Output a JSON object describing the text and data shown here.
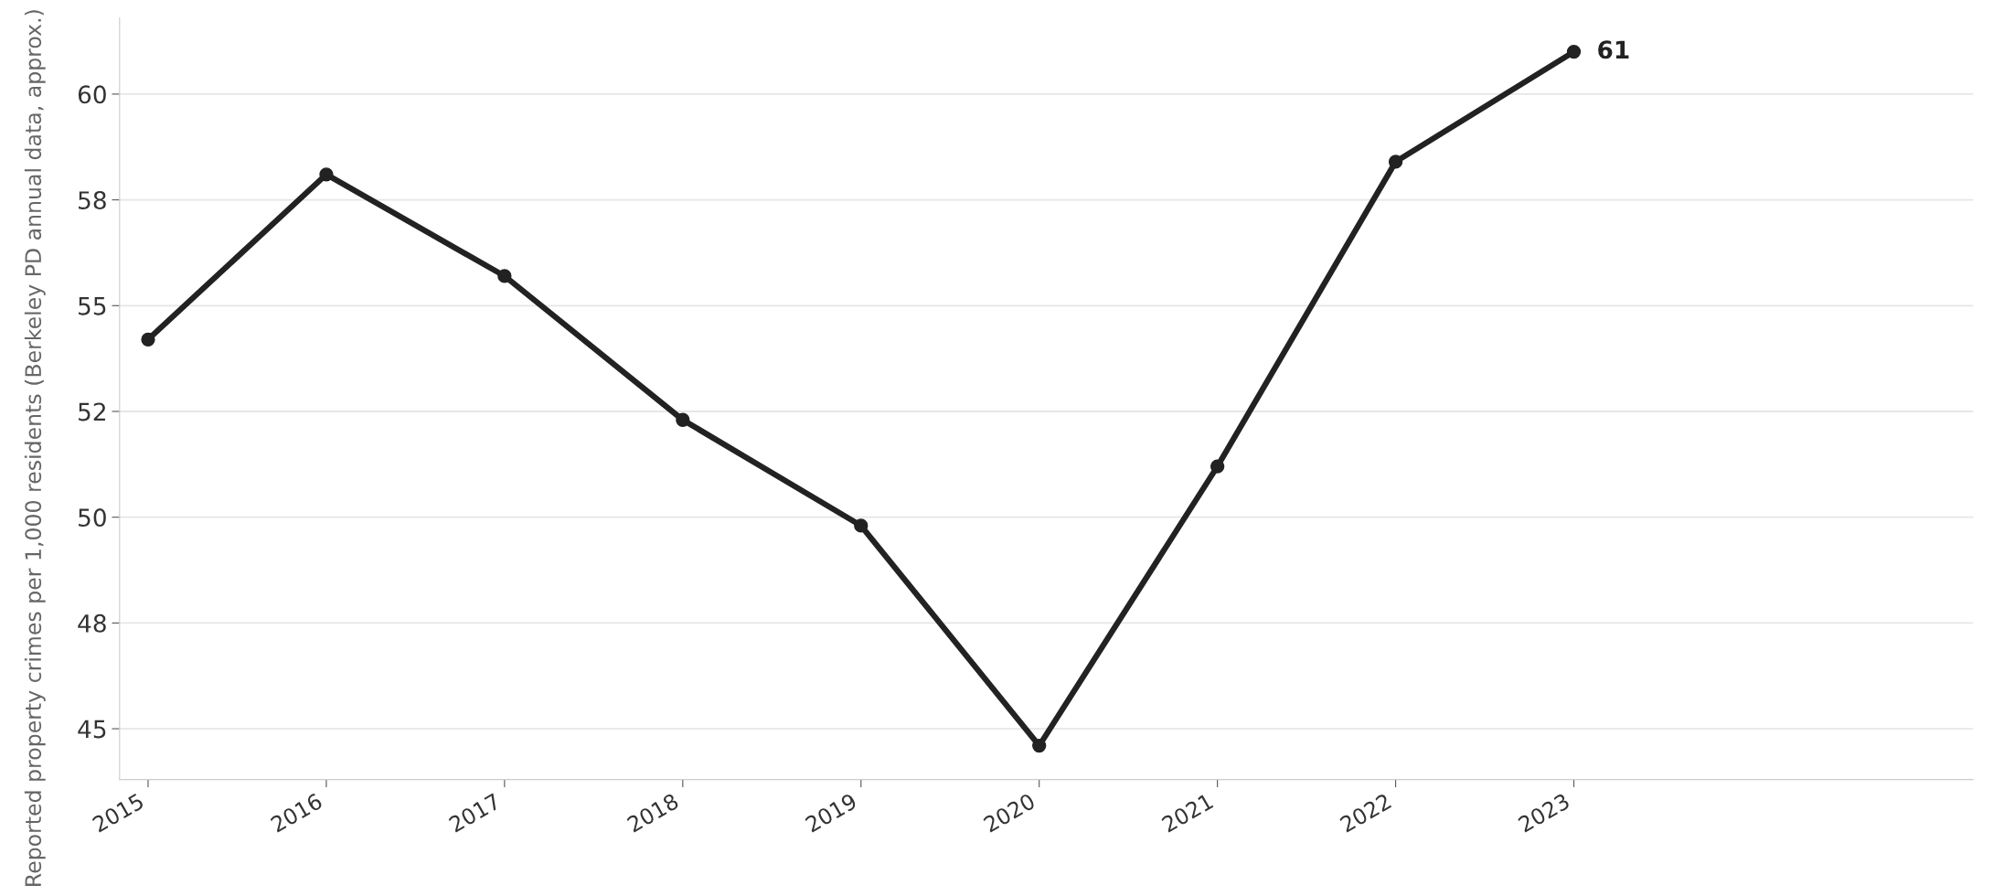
{
  "chart_data": {
    "type": "line",
    "ylabel": "Reported property crimes per 1,000 residents (Berkeley PD annual data, approx.)",
    "x": [
      2015,
      2016,
      2017,
      2018,
      2019,
      2020,
      2021,
      2022,
      2023
    ],
    "series": [
      {
        "color": "#222222",
        "values": [
          54.2,
          58.1,
          55.7,
          52.3,
          49.8,
          44.6,
          51.2,
          58.4,
          61.0
        ],
        "value_labels": [
          null,
          null,
          null,
          null,
          null,
          null,
          null,
          null,
          "61"
        ]
      }
    ],
    "xlim": [
      2014.84,
      2025.24
    ],
    "xticks": [
      2015,
      2016,
      2017,
      2018,
      2019,
      2020,
      2021,
      2022,
      2023
    ],
    "ylim": [
      43.8,
      61.8
    ],
    "yticks": [
      45,
      {
        "value": 47.5,
        "label": "48"
      },
      50,
      {
        "value": 52.5,
        "label": "52"
      },
      55,
      {
        "value": 57.5,
        "label": "58"
      },
      60
    ],
    "grid": "y",
    "marker": "circle",
    "line_style": "solid",
    "legend": false
  }
}
